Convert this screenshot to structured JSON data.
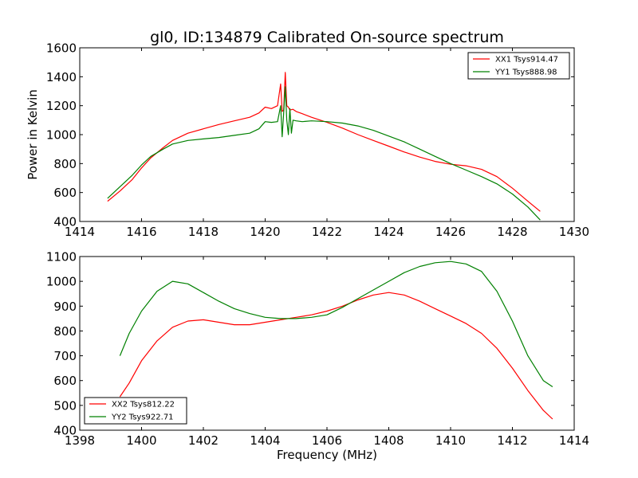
{
  "chart_data": [
    {
      "type": "line",
      "title": "gl0, ID:134879 Calibrated On-source spectrum",
      "xlabel": "",
      "ylabel": "Power in Kelvin",
      "xlim": [
        1414,
        1430
      ],
      "ylim": [
        400,
        1600
      ],
      "xticks": [
        1414,
        1416,
        1418,
        1420,
        1422,
        1424,
        1426,
        1428,
        1430
      ],
      "yticks": [
        400,
        600,
        800,
        1000,
        1200,
        1400,
        1600
      ],
      "grid": false,
      "legend_position": "upper right",
      "series": [
        {
          "name": "XX1 Tsys914.47",
          "color": "#ff0000",
          "x": [
            1414.9,
            1415.3,
            1415.7,
            1416.0,
            1416.3,
            1416.7,
            1417.0,
            1417.5,
            1418.0,
            1418.5,
            1419.0,
            1419.5,
            1419.8,
            1420.0,
            1420.2,
            1420.4,
            1420.5,
            1420.55,
            1420.6,
            1420.65,
            1420.7,
            1420.75,
            1420.8,
            1420.9,
            1421.0,
            1421.2,
            1421.5,
            1422.0,
            1422.5,
            1423.0,
            1423.5,
            1424.0,
            1424.5,
            1425.0,
            1425.5,
            1426.0,
            1426.5,
            1427.0,
            1427.5,
            1428.0,
            1428.5,
            1428.9
          ],
          "y": [
            540,
            610,
            690,
            770,
            840,
            910,
            960,
            1010,
            1040,
            1070,
            1095,
            1120,
            1150,
            1190,
            1180,
            1200,
            1350,
            1160,
            1170,
            1430,
            1200,
            1190,
            1170,
            1175,
            1160,
            1145,
            1120,
            1085,
            1045,
            1000,
            960,
            920,
            880,
            845,
            815,
            795,
            785,
            760,
            710,
            630,
            540,
            470
          ]
        },
        {
          "name": "YY1 Tsys888.98",
          "color": "#008000",
          "x": [
            1414.9,
            1415.3,
            1415.7,
            1416.0,
            1416.3,
            1416.7,
            1417.0,
            1417.5,
            1418.0,
            1418.5,
            1419.0,
            1419.5,
            1419.8,
            1420.0,
            1420.2,
            1420.4,
            1420.5,
            1420.55,
            1420.6,
            1420.65,
            1420.7,
            1420.75,
            1420.8,
            1420.85,
            1420.9,
            1421.0,
            1421.2,
            1421.5,
            1422.0,
            1422.5,
            1423.0,
            1423.5,
            1424.0,
            1424.5,
            1425.0,
            1425.5,
            1426.0,
            1426.5,
            1427.0,
            1427.5,
            1428.0,
            1428.5,
            1428.9
          ],
          "y": [
            560,
            640,
            720,
            790,
            850,
            900,
            935,
            960,
            970,
            980,
            995,
            1010,
            1040,
            1090,
            1085,
            1090,
            1200,
            985,
            1150,
            1330,
            1100,
            1000,
            1180,
            1010,
            1100,
            1095,
            1090,
            1095,
            1090,
            1080,
            1060,
            1030,
            990,
            950,
            900,
            850,
            800,
            755,
            710,
            660,
            590,
            500,
            410
          ]
        }
      ]
    },
    {
      "type": "line",
      "title": "",
      "xlabel": "Frequency (MHz)",
      "ylabel": "",
      "xlim": [
        1398,
        1414
      ],
      "ylim": [
        400,
        1100
      ],
      "xticks": [
        1398,
        1400,
        1402,
        1404,
        1406,
        1408,
        1410,
        1412,
        1414
      ],
      "yticks": [
        400,
        500,
        600,
        700,
        800,
        900,
        1000,
        1100
      ],
      "grid": false,
      "legend_position": "lower left",
      "series": [
        {
          "name": "XX2 Tsys812.22",
          "color": "#ff0000",
          "x": [
            1399.3,
            1399.6,
            1400.0,
            1400.5,
            1401.0,
            1401.5,
            1402.0,
            1402.5,
            1403.0,
            1403.5,
            1404.0,
            1404.5,
            1405.0,
            1405.5,
            1406.0,
            1406.5,
            1407.0,
            1407.5,
            1408.0,
            1408.5,
            1409.0,
            1409.5,
            1410.0,
            1410.5,
            1411.0,
            1411.5,
            1412.0,
            1412.5,
            1413.0,
            1413.3
          ],
          "y": [
            535,
            590,
            680,
            760,
            815,
            840,
            845,
            835,
            825,
            825,
            835,
            845,
            855,
            865,
            880,
            900,
            925,
            945,
            955,
            945,
            920,
            890,
            860,
            830,
            790,
            730,
            650,
            560,
            480,
            445
          ]
        },
        {
          "name": "YY2 Tsys922.71",
          "color": "#008000",
          "x": [
            1399.3,
            1399.6,
            1400.0,
            1400.5,
            1401.0,
            1401.5,
            1402.0,
            1402.5,
            1403.0,
            1403.5,
            1404.0,
            1404.5,
            1405.0,
            1405.5,
            1406.0,
            1406.5,
            1407.0,
            1407.5,
            1408.0,
            1408.5,
            1409.0,
            1409.5,
            1410.0,
            1410.5,
            1411.0,
            1411.5,
            1412.0,
            1412.5,
            1413.0,
            1413.3
          ],
          "y": [
            700,
            790,
            880,
            960,
            1000,
            990,
            955,
            920,
            890,
            870,
            855,
            850,
            850,
            855,
            865,
            895,
            930,
            965,
            1000,
            1035,
            1060,
            1075,
            1080,
            1070,
            1040,
            960,
            840,
            700,
            600,
            575
          ]
        }
      ]
    }
  ]
}
